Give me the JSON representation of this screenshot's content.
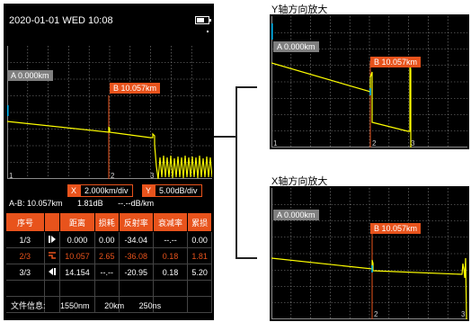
{
  "status": {
    "datetime": "2020-01-01  WED  10:08",
    "battery_level": 0.7
  },
  "trace": {
    "marker_a": "A  0.000km",
    "marker_b": "B  10.057km",
    "axis_marks": [
      "1",
      "2",
      "3"
    ]
  },
  "controls": {
    "x_key": "X",
    "x_value": "2.000km/div",
    "y_key": "Y",
    "y_value": "5.00dB/div"
  },
  "ab_info": {
    "distance": "A-B: 10.057km",
    "loss": "1.81dB",
    "attenuation": "--.--dB/km"
  },
  "table": {
    "headers": [
      "序号",
      "距离",
      "损耗",
      "反射率",
      "衰减率",
      "累损"
    ],
    "rows": [
      {
        "no": "1/3",
        "icon": "start-event-icon",
        "distance": "0.000",
        "loss": "0.00",
        "reflect": "-34.04",
        "atten": "--.--",
        "total": "0.00"
      },
      {
        "no": "2/3",
        "icon": "reflective-event-icon",
        "distance": "10.057",
        "loss": "2.65",
        "reflect": "-36.08",
        "atten": "0.18",
        "total": "1.81"
      },
      {
        "no": "3/3",
        "icon": "end-event-icon",
        "distance": "14.154",
        "loss": "--.--",
        "reflect": "-20.95",
        "atten": "0.18",
        "total": "5.20"
      }
    ]
  },
  "file_info": {
    "label": "文件信息:",
    "wavelength": "1550nm",
    "range": "20km",
    "pulse": "250ns"
  },
  "zoom_y": {
    "title": "Y轴方向放大",
    "marker_a": "A  0.000km",
    "marker_b": "B  10.057km",
    "axis_marks": [
      "1",
      "2",
      "3"
    ]
  },
  "zoom_x": {
    "title": "X轴方向放大",
    "marker_a": "A  0.000km",
    "marker_b": "B  10.057km",
    "axis_marks": [
      "2",
      "3"
    ]
  },
  "colors": {
    "accent": "#e8531c",
    "trace": "#ffff00",
    "marker_line": "#e8531c",
    "cursor_a": "#00bfff"
  }
}
